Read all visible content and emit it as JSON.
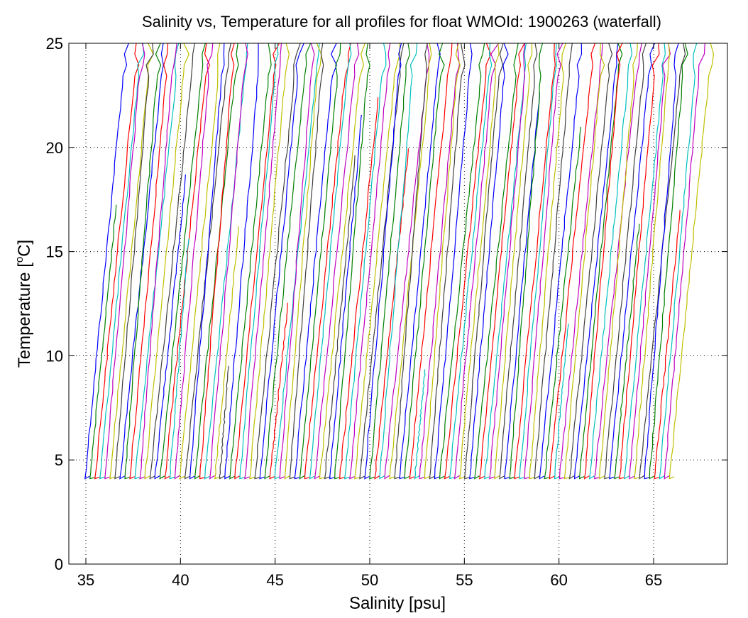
{
  "chart_data": {
    "type": "line",
    "title": "Salinity vs, Temperature for all profiles for float WMOId: 1900263 (waterfall)",
    "xlabel": "Salinity [psu]",
    "ylabel_main": "Temperature [",
    "ylabel_sup": "o",
    "ylabel_end": "C]",
    "xlim": [
      34.1,
      68.9
    ],
    "ylim": [
      0,
      25
    ],
    "x_ticks": [
      35,
      40,
      45,
      50,
      55,
      60,
      65
    ],
    "y_ticks": [
      0,
      5,
      10,
      15,
      20,
      25
    ],
    "grid": true,
    "grid_style": "dotted",
    "legend": "none",
    "profile_count": 118,
    "first_profile_salinity_at_bottom": 35.0,
    "waterfall_offset_psu": 0.264,
    "profile_slope_psu_per_degC": 0.1,
    "bottom_temperature": 4.1,
    "top_temperature": 25,
    "series_colors": [
      "#0000ff",
      "#008000",
      "#ff0000",
      "#00bfbf",
      "#bf00bf",
      "#bfbf00",
      "#404040"
    ]
  }
}
